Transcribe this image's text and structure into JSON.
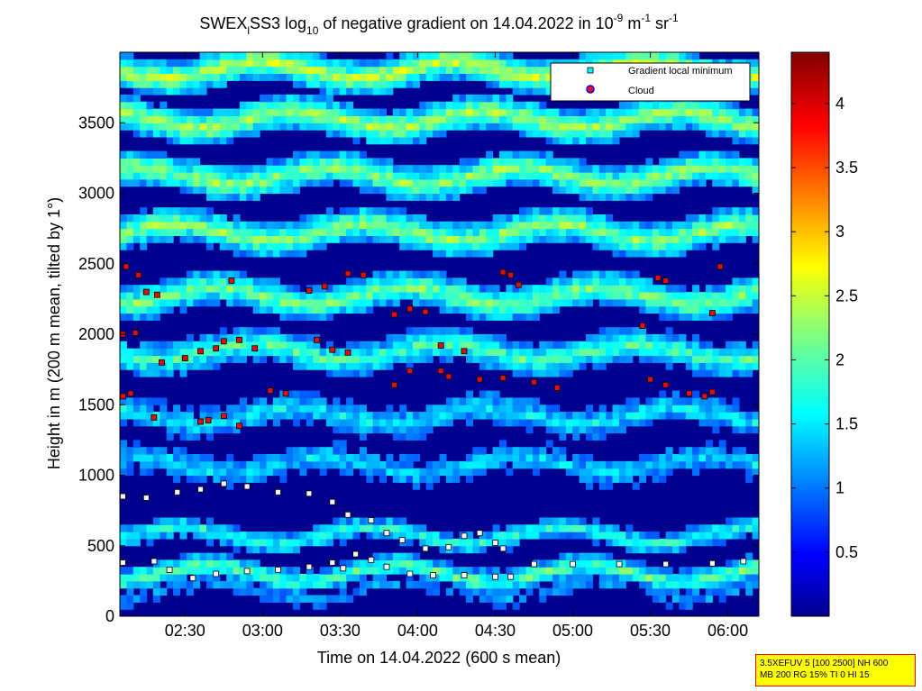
{
  "chart_data": {
    "type": "heatmap",
    "title": {
      "prefix": "SWEX",
      "prefix_sub": "l",
      "mid": "SS3 log",
      "log_sub": "10",
      "suffix": " of negative gradient on 14.04.2022 in 10",
      "exp1": "-9",
      "unit1": " m",
      "exp2": "-1",
      "unit2": " sr",
      "exp3": "-1"
    },
    "xlabel": "Time on 14.04.2022 (600 s mean)",
    "ylabel": "Height in m (200 m mean, tilted by 1°)",
    "x_ticks": [
      "02:30",
      "03:00",
      "03:30",
      "04:00",
      "04:30",
      "05:00",
      "05:30",
      "06:00"
    ],
    "x_tick_hours": [
      2.5,
      3.0,
      3.5,
      4.0,
      4.5,
      5.0,
      5.5,
      6.0
    ],
    "xlim_hours": [
      2.08,
      6.2
    ],
    "y_ticks": [
      "0",
      "500",
      "1000",
      "1500",
      "2000",
      "2500",
      "3000",
      "3500"
    ],
    "y_tick_values": [
      0,
      500,
      1000,
      1500,
      2000,
      2500,
      3000,
      3500
    ],
    "ylim": [
      0,
      4000
    ],
    "colorbar": {
      "ticks": [
        "0.5",
        "1",
        "1.5",
        "2",
        "2.5",
        "3",
        "3.5",
        "4"
      ],
      "tick_values": [
        0.5,
        1.0,
        1.5,
        2.0,
        2.5,
        3.0,
        3.5,
        4.0
      ],
      "range": [
        0,
        4.4
      ],
      "colormap": "jet"
    },
    "legend": {
      "placement": "top-right",
      "entries": [
        {
          "label": "Gradient local minimum",
          "marker": "square",
          "color": "#00ffff"
        },
        {
          "label": "Cloud",
          "marker": "circle",
          "color": "#ff0000"
        }
      ]
    },
    "layers": {
      "background_level": 0.25,
      "layer_bands": [
        {
          "height": 160,
          "level": 1.2
        },
        {
          "height": 280,
          "level": 2.1
        },
        {
          "height": 550,
          "level": 1.8
        },
        {
          "height": 1050,
          "level": 1.5
        },
        {
          "height": 1400,
          "level": 1.6
        },
        {
          "height": 1850,
          "level": 2.0
        },
        {
          "height": 2250,
          "level": 2.2
        },
        {
          "height": 2700,
          "level": 2.3
        },
        {
          "height": 3100,
          "level": 2.3
        },
        {
          "height": 3500,
          "level": 2.4
        },
        {
          "height": 3850,
          "level": 2.5
        }
      ]
    },
    "series": [
      {
        "name": "Gradient local minimum",
        "note": "lower boundary layer trace",
        "points": [
          [
            2.1,
            380
          ],
          [
            2.3,
            390
          ],
          [
            2.4,
            330
          ],
          [
            2.55,
            270
          ],
          [
            2.7,
            300
          ],
          [
            2.9,
            320
          ],
          [
            3.1,
            330
          ],
          [
            3.3,
            350
          ],
          [
            3.45,
            380
          ],
          [
            3.52,
            340
          ],
          [
            3.6,
            440
          ],
          [
            3.7,
            400
          ],
          [
            3.8,
            350
          ],
          [
            3.95,
            300
          ],
          [
            4.1,
            290
          ],
          [
            4.3,
            290
          ],
          [
            4.5,
            280
          ],
          [
            4.6,
            280
          ],
          [
            4.75,
            370
          ],
          [
            5.0,
            370
          ],
          [
            5.3,
            370
          ],
          [
            5.6,
            370
          ],
          [
            5.9,
            375
          ],
          [
            6.1,
            390
          ]
        ]
      },
      {
        "name": "Gradient local minimum",
        "note": "upper boundary layer trace",
        "points": [
          [
            2.1,
            850
          ],
          [
            2.25,
            840
          ],
          [
            2.45,
            880
          ],
          [
            2.6,
            900
          ],
          [
            2.75,
            940
          ],
          [
            2.9,
            920
          ],
          [
            3.1,
            880
          ],
          [
            3.3,
            870
          ],
          [
            3.45,
            810
          ],
          [
            3.55,
            720
          ],
          [
            3.7,
            680
          ],
          [
            3.8,
            590
          ],
          [
            3.9,
            540
          ],
          [
            4.05,
            480
          ],
          [
            4.2,
            490
          ],
          [
            4.3,
            570
          ],
          [
            4.4,
            590
          ],
          [
            4.5,
            520
          ],
          [
            4.55,
            480
          ]
        ]
      },
      {
        "name": "Cloud",
        "points": [
          [
            2.12,
            2480
          ],
          [
            2.2,
            2420
          ],
          [
            2.25,
            2300
          ],
          [
            2.32,
            2280
          ],
          [
            2.1,
            2000
          ],
          [
            2.18,
            2010
          ],
          [
            2.1,
            1560
          ],
          [
            2.15,
            1580
          ],
          [
            2.3,
            1410
          ],
          [
            2.35,
            1800
          ],
          [
            2.5,
            1830
          ],
          [
            2.6,
            1880
          ],
          [
            2.7,
            1900
          ],
          [
            2.75,
            1950
          ],
          [
            2.85,
            1960
          ],
          [
            2.95,
            1900
          ],
          [
            2.6,
            1380
          ],
          [
            2.65,
            1390
          ],
          [
            2.75,
            1420
          ],
          [
            2.85,
            1350
          ],
          [
            2.8,
            2380
          ],
          [
            3.05,
            1600
          ],
          [
            3.15,
            1580
          ],
          [
            3.35,
            1960
          ],
          [
            3.45,
            1890
          ],
          [
            3.55,
            1870
          ],
          [
            3.3,
            2310
          ],
          [
            3.4,
            2340
          ],
          [
            3.55,
            2430
          ],
          [
            3.65,
            2420
          ],
          [
            3.85,
            2140
          ],
          [
            3.95,
            2180
          ],
          [
            4.05,
            2160
          ],
          [
            4.15,
            1920
          ],
          [
            4.3,
            1880
          ],
          [
            4.2,
            1700
          ],
          [
            3.95,
            1740
          ],
          [
            3.85,
            1640
          ],
          [
            4.4,
            1680
          ],
          [
            4.55,
            1690
          ],
          [
            4.75,
            1660
          ],
          [
            4.9,
            1620
          ],
          [
            4.6,
            2420
          ],
          [
            4.65,
            2350
          ],
          [
            4.55,
            2440
          ],
          [
            5.55,
            2400
          ],
          [
            5.6,
            2380
          ],
          [
            5.5,
            1680
          ],
          [
            5.6,
            1640
          ],
          [
            5.75,
            1580
          ],
          [
            5.85,
            1560
          ],
          [
            5.9,
            1590
          ],
          [
            5.95,
            2480
          ],
          [
            5.9,
            2150
          ],
          [
            4.15,
            1740
          ],
          [
            5.45,
            2060
          ]
        ]
      }
    ]
  },
  "infobox": {
    "line1": "3.5XEFUV 5 [100 2500] NH 600",
    "line2": "MB 200 RG 15% TI 0 HI 15"
  }
}
